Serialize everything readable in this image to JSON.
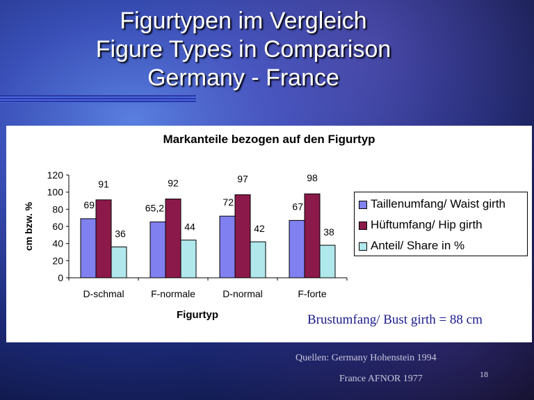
{
  "slide": {
    "title_line1": "Figurtypen im Vergleich",
    "title_line2": "Figure Types in Comparison",
    "title_line3": "Germany - France",
    "note": "Brustumfang/ Bust girth = 88 cm",
    "source_line1": "Quellen: Germany Hohenstein 1994",
    "source_line2": "France AFNOR 1977",
    "page_number": "18"
  },
  "chart_data": {
    "type": "bar",
    "title": "Markanteile bezogen auf den Figurtyp",
    "xlabel": "Figurtyp",
    "ylabel": "cm bzw. %",
    "ylim": [
      0,
      120
    ],
    "yticks": [
      0,
      20,
      40,
      60,
      80,
      100,
      120
    ],
    "categories": [
      "D-schmal",
      "F-normale",
      "D-normal",
      "F-forte"
    ],
    "series": [
      {
        "name": "Taillenumfang/ Waist girth",
        "color": "#8080f0",
        "values": [
          69,
          65.2,
          72,
          67
        ],
        "labels": [
          "69",
          "65,2",
          "72",
          "67"
        ]
      },
      {
        "name": "Hüftumfang/ Hip girth",
        "color": "#8b1a4a",
        "values": [
          91,
          92,
          97,
          98
        ],
        "labels": [
          "91",
          "92",
          "97",
          "98"
        ]
      },
      {
        "name": "Anteil/ Share in %",
        "color": "#b0e8ec",
        "values": [
          36,
          44,
          42,
          38
        ],
        "labels": [
          "36",
          "44",
          "42",
          "38"
        ]
      }
    ],
    "grid": false,
    "legend": "right"
  }
}
